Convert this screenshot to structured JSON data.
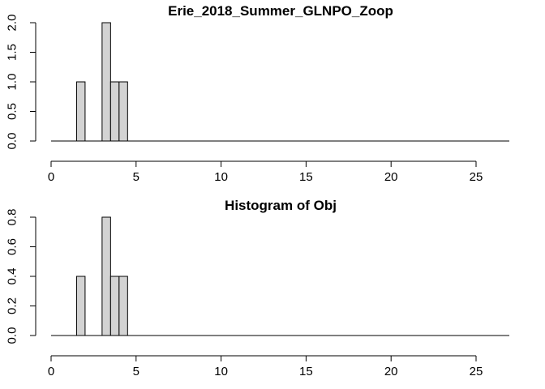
{
  "chart_data": [
    {
      "type": "bar",
      "title": "Erie_2018_Summer_GLNPO_Zoop",
      "xlabel": "",
      "ylabel": "",
      "xlim": [
        0,
        27
      ],
      "ylim": [
        0,
        2
      ],
      "x_ticks": [
        0,
        5,
        10,
        15,
        20,
        25
      ],
      "y_ticks": [
        0.0,
        0.5,
        1.0,
        1.5,
        2.0
      ],
      "x_tick_labels": [
        "0",
        "5",
        "10",
        "15",
        "20",
        "25"
      ],
      "y_tick_labels": [
        "0.0",
        "0.5",
        "1.0",
        "1.5",
        "2.0"
      ],
      "bins": [
        {
          "x0": 1.5,
          "x1": 2.0,
          "value": 1
        },
        {
          "x0": 3.0,
          "x1": 3.5,
          "value": 2
        },
        {
          "x0": 3.5,
          "x1": 4.0,
          "value": 1
        },
        {
          "x0": 4.0,
          "x1": 4.5,
          "value": 1
        }
      ],
      "grid": false
    },
    {
      "type": "bar",
      "title": "Histogram of Obj",
      "xlabel": "",
      "ylabel": "",
      "xlim": [
        0,
        27
      ],
      "ylim": [
        0,
        0.8
      ],
      "x_ticks": [
        0,
        5,
        10,
        15,
        20,
        25
      ],
      "y_ticks": [
        0.0,
        0.2,
        0.4,
        0.6,
        0.8
      ],
      "x_tick_labels": [
        "0",
        "5",
        "10",
        "15",
        "20",
        "25"
      ],
      "y_tick_labels": [
        "0.0",
        "0.2",
        "0.4",
        "0.6",
        "0.8"
      ],
      "bins": [
        {
          "x0": 1.5,
          "x1": 2.0,
          "value": 0.4
        },
        {
          "x0": 3.0,
          "x1": 3.5,
          "value": 0.8
        },
        {
          "x0": 3.5,
          "x1": 4.0,
          "value": 0.4
        },
        {
          "x0": 4.0,
          "x1": 4.5,
          "value": 0.4
        }
      ],
      "grid": false
    }
  ]
}
